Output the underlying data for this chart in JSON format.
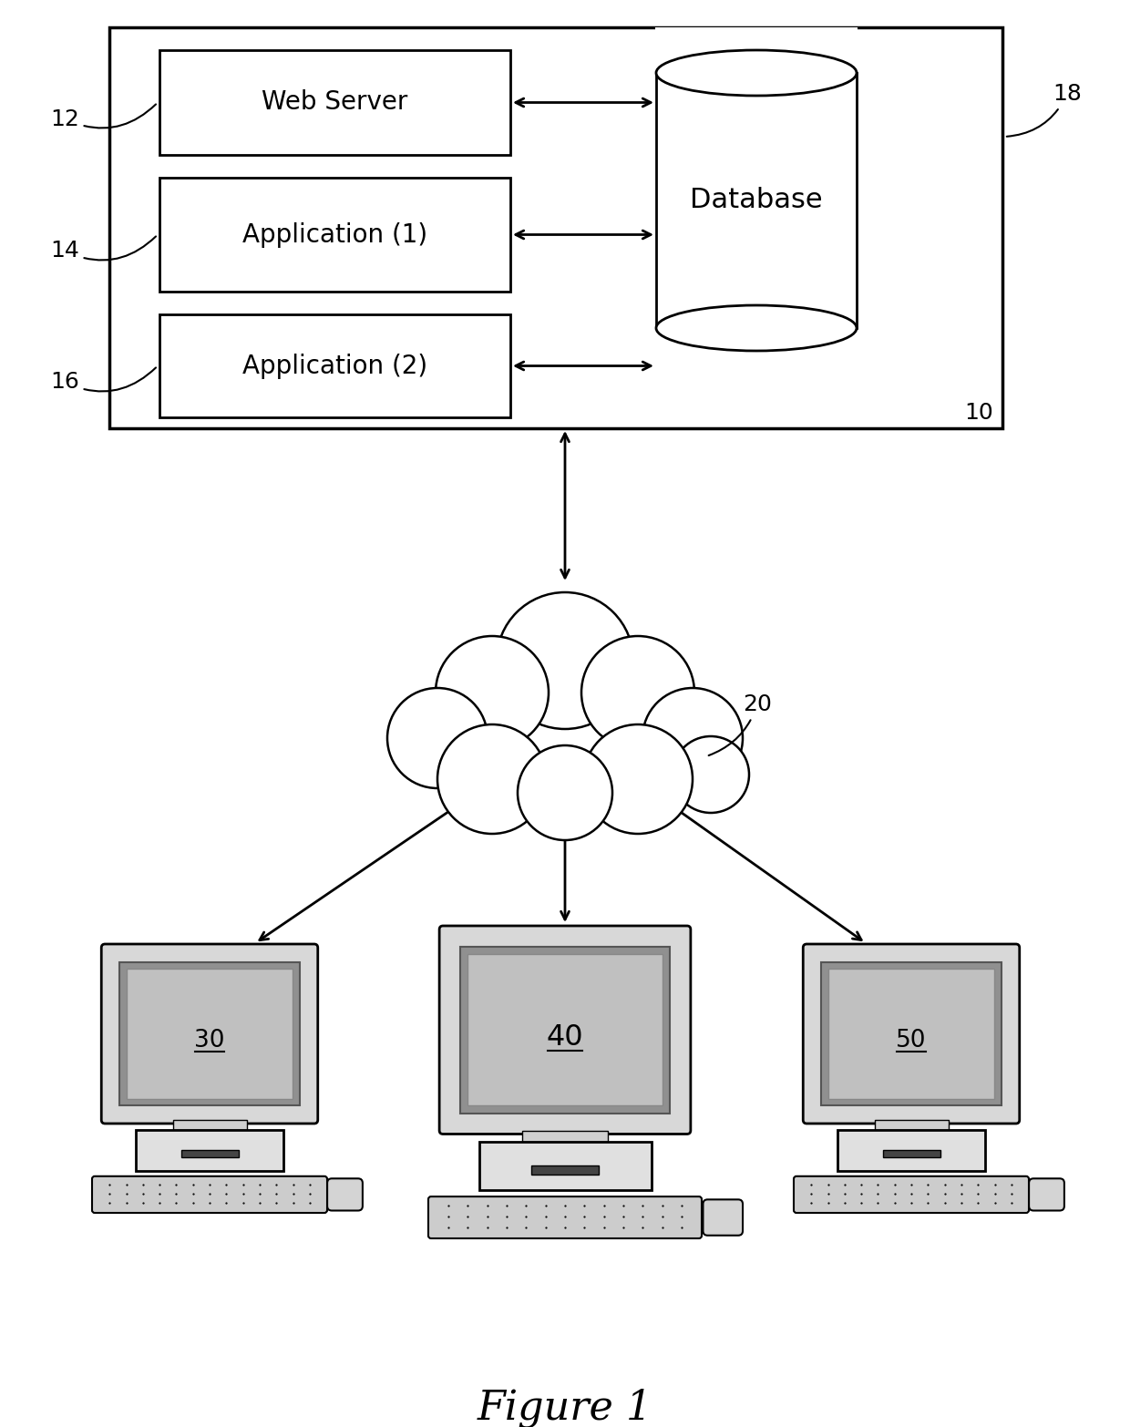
{
  "title": "Figure 1",
  "bg_color": "#ffffff",
  "labels": {
    "web_server": "Web Server",
    "app1": "Application (1)",
    "app2": "Application (2)",
    "database": "Database",
    "ref_10": "10",
    "ref_12": "12",
    "ref_14": "14",
    "ref_16": "16",
    "ref_18": "18",
    "ref_20": "20",
    "ref_30": "30",
    "ref_40": "40",
    "ref_50": "50"
  }
}
